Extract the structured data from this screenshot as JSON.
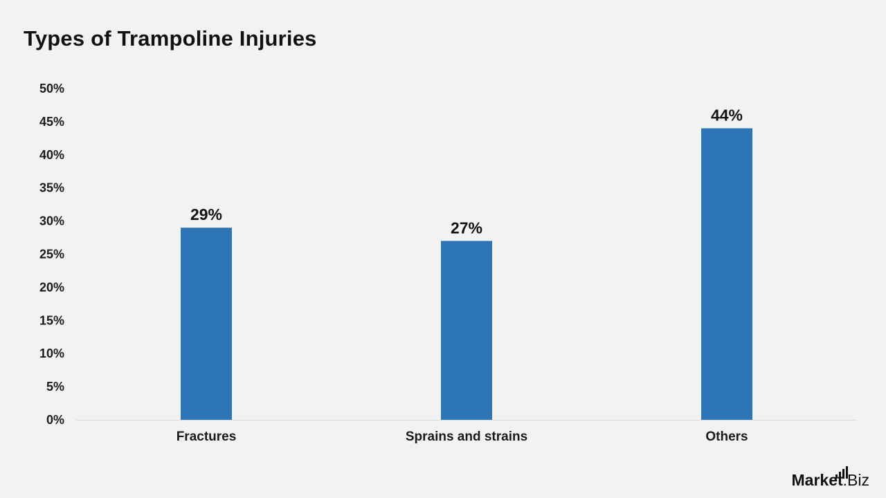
{
  "chart_data": {
    "type": "bar",
    "title": "Types of Trampoline Injuries",
    "xlabel": "",
    "ylabel": "",
    "categories": [
      "Fractures",
      "Sprains and strains",
      "Others"
    ],
    "values": [
      29,
      27,
      44
    ],
    "value_labels": [
      "29%",
      "27%",
      "44%"
    ],
    "ylim": [
      0,
      50
    ],
    "yticks": [
      "0%",
      "5%",
      "10%",
      "15%",
      "20%",
      "25%",
      "30%",
      "35%",
      "40%",
      "45%",
      "50%"
    ],
    "grid": false,
    "legend": "none",
    "bar_color": "#2e75b6"
  },
  "branding": {
    "name_main": "Market",
    "name_suffix": ".Biz"
  }
}
